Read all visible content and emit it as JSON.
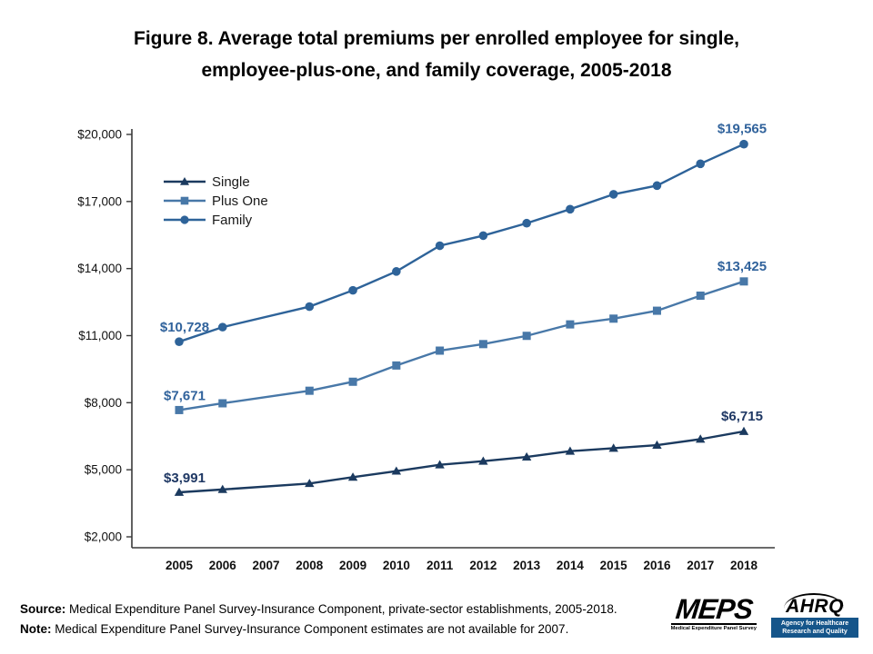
{
  "title": "Figure 8. Average total premiums per enrolled employee for single,\nemployee-plus-one, and family coverage, 2005-2018",
  "footer": {
    "source_label": "Source:",
    "source_text": " Medical Expenditure Panel Survey-Insurance Component, private-sector establishments, 2005-2018.",
    "note_label": "Note:",
    "note_text": " Medical Expenditure Panel Survey-Insurance Component estimates are not available for 2007."
  },
  "logos": {
    "meps_name": "MEPS",
    "meps_caption": "Medical Expenditure Panel Survey",
    "ahrq_name": "AHRQ",
    "ahrq_caption": "Agency for Healthcare Research and Quality"
  },
  "chart_data": {
    "type": "line",
    "title": "Average total premiums per enrolled employee for single, employee-plus-one, and family coverage, 2005-2018",
    "x_labels": [
      "2005",
      "2006",
      "2007",
      "2008",
      "2009",
      "2010",
      "2011",
      "2012",
      "2013",
      "2014",
      "2015",
      "2016",
      "2017",
      "2018"
    ],
    "ylim": [
      2000,
      20000
    ],
    "ytick_step": 3000,
    "ytick_labels": [
      "$2,000",
      "$5,000",
      "$8,000",
      "$11,000",
      "$14,000",
      "$17,000",
      "$20,000"
    ],
    "grid": false,
    "legend_position": "top-left",
    "missing_data_note": "2007 estimates not available",
    "series": [
      {
        "name": "Single",
        "marker": "triangle",
        "color": "#1b3a5f",
        "label_color": "#1f3864",
        "values": [
          3991,
          4118,
          null,
          4386,
          4669,
          4940,
          5222,
          5384,
          5571,
          5832,
          5963,
          6101,
          6368,
          6715
        ],
        "first_label": "$3,991",
        "last_label": "$6,715"
      },
      {
        "name": "Plus One",
        "marker": "square",
        "color": "#4878a8",
        "label_color": "#31639c",
        "values": [
          7671,
          7973,
          null,
          8535,
          8937,
          9664,
          10329,
          10621,
          10990,
          11503,
          11760,
          12114,
          12788,
          13425
        ],
        "first_label": "$7,671",
        "last_label": "$13,425"
      },
      {
        "name": "Family",
        "marker": "circle",
        "color": "#2e6399",
        "label_color": "#31639c",
        "values": [
          10728,
          11381,
          null,
          12298,
          13027,
          13871,
          15022,
          15473,
          16029,
          16655,
          17322,
          17710,
          18687,
          19565
        ],
        "first_label": "$10,728",
        "last_label": "$19,565"
      }
    ]
  }
}
